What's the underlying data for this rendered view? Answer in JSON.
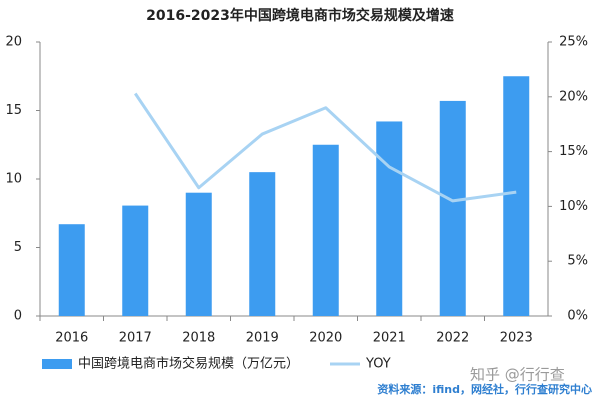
{
  "chart_data": {
    "type": "bar",
    "title": "2016-2023年中国跨境电商市场交易规模及增速",
    "categories": [
      "2016",
      "2017",
      "2018",
      "2019",
      "2020",
      "2021",
      "2022",
      "2023"
    ],
    "series": [
      {
        "name": "中国跨境电商市场交易规模（万亿元）",
        "color": "#3d9cf0",
        "values": [
          6.7,
          8.06,
          9.0,
          10.5,
          12.5,
          14.2,
          15.7,
          17.5
        ]
      },
      {
        "name": "YOY",
        "color": "#a8d3f3",
        "type": "line",
        "axis": "y2",
        "values": [
          null,
          20.3,
          11.7,
          16.6,
          19.0,
          13.6,
          10.5,
          11.3
        ]
      }
    ],
    "ylim": [
      0,
      20
    ],
    "yticks": [
      0,
      5,
      10,
      15,
      20
    ],
    "y2lim": [
      0,
      25
    ],
    "y2ticks": [
      {
        "value": 0,
        "label": "0%"
      },
      {
        "value": 5,
        "label": "5%"
      },
      {
        "value": 10,
        "label": "10%"
      },
      {
        "value": 15,
        "label": "15%"
      },
      {
        "value": 20,
        "label": "20%"
      },
      {
        "value": 25,
        "label": "25%"
      }
    ],
    "source": "资料来源：ifind，网经社，行行查研究中心",
    "watermark": "知乎 @行行查"
  }
}
